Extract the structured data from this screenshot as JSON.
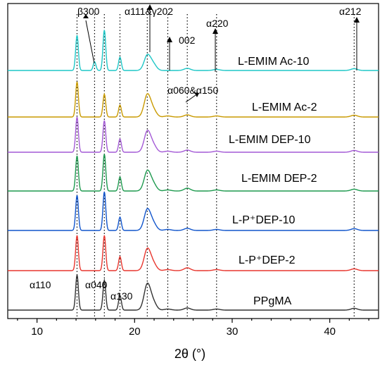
{
  "chart_data": {
    "type": "line",
    "xlabel": "2θ (°)",
    "xlim": [
      7,
      45
    ],
    "xticks": [
      "10",
      "20",
      "30",
      "40"
    ],
    "xtick_values": [
      10,
      20,
      30,
      40
    ],
    "grid": false,
    "peak_positions": [
      14.1,
      15.9,
      16.9,
      18.5,
      21.3,
      23.4,
      25.4,
      28.4,
      42.5
    ],
    "series": [
      {
        "name": "L-EMIM Ac-10",
        "color": "#1fc7c7",
        "peaks": [
          [
            14.1,
            1.0
          ],
          [
            15.9,
            0.25
          ],
          [
            16.9,
            1.15
          ],
          [
            18.5,
            0.38
          ],
          [
            21.3,
            0.42
          ],
          [
            21.9,
            0.18
          ],
          [
            25.4,
            0.06
          ],
          [
            28.4,
            0.03
          ],
          [
            42.5,
            0.05
          ]
        ]
      },
      {
        "name": "L-EMIM Ac-2",
        "color": "#c99a00",
        "peaks": [
          [
            14.1,
            1.0
          ],
          [
            16.9,
            0.65
          ],
          [
            18.5,
            0.34
          ],
          [
            21.3,
            0.62
          ],
          [
            21.9,
            0.2
          ],
          [
            23.4,
            0.03
          ],
          [
            25.4,
            0.06
          ],
          [
            28.4,
            0.03
          ],
          [
            42.5,
            0.05
          ]
        ]
      },
      {
        "name": "L-EMIM DEP-10",
        "color": "#a45ad6",
        "peaks": [
          [
            14.1,
            1.0
          ],
          [
            16.9,
            0.9
          ],
          [
            18.5,
            0.38
          ],
          [
            21.3,
            0.58
          ],
          [
            21.9,
            0.2
          ],
          [
            23.4,
            0.03
          ],
          [
            25.4,
            0.06
          ],
          [
            28.4,
            0.03
          ],
          [
            42.5,
            0.05
          ]
        ]
      },
      {
        "name": "L-EMIM DEP-2",
        "color": "#1e9a4f",
        "peaks": [
          [
            14.1,
            1.0
          ],
          [
            16.9,
            1.05
          ],
          [
            18.5,
            0.4
          ],
          [
            21.3,
            0.55
          ],
          [
            21.9,
            0.2
          ],
          [
            23.4,
            0.03
          ],
          [
            25.4,
            0.08
          ],
          [
            28.4,
            0.03
          ],
          [
            42.5,
            0.05
          ]
        ]
      },
      {
        "name": "L-P⁺DEP-10",
        "color": "#1155cc",
        "peaks": [
          [
            14.1,
            1.0
          ],
          [
            16.9,
            1.1
          ],
          [
            18.5,
            0.38
          ],
          [
            21.3,
            0.58
          ],
          [
            21.9,
            0.2
          ],
          [
            23.4,
            0.03
          ],
          [
            25.4,
            0.06
          ],
          [
            28.4,
            0.03
          ],
          [
            42.5,
            0.05
          ]
        ]
      },
      {
        "name": "L-P⁺DEP-2",
        "color": "#e8362e",
        "peaks": [
          [
            14.1,
            1.0
          ],
          [
            16.9,
            1.0
          ],
          [
            18.5,
            0.4
          ],
          [
            21.3,
            0.6
          ],
          [
            21.9,
            0.2
          ],
          [
            23.4,
            0.03
          ],
          [
            25.4,
            0.08
          ],
          [
            28.4,
            0.03
          ],
          [
            42.5,
            0.05
          ]
        ]
      },
      {
        "name": "PPgMA",
        "color": "#333333",
        "peaks": [
          [
            14.1,
            1.0
          ],
          [
            16.9,
            0.85
          ],
          [
            18.5,
            0.42
          ],
          [
            21.3,
            0.72
          ],
          [
            21.9,
            0.22
          ],
          [
            23.4,
            0.03
          ],
          [
            25.4,
            0.06
          ],
          [
            28.4,
            0.03
          ],
          [
            42.5,
            0.05
          ]
        ]
      }
    ],
    "annotations": [
      "β300",
      "α111&γ202",
      "002",
      "α220",
      "α212",
      "α060&α150",
      "α110",
      "α040",
      "α130"
    ]
  }
}
